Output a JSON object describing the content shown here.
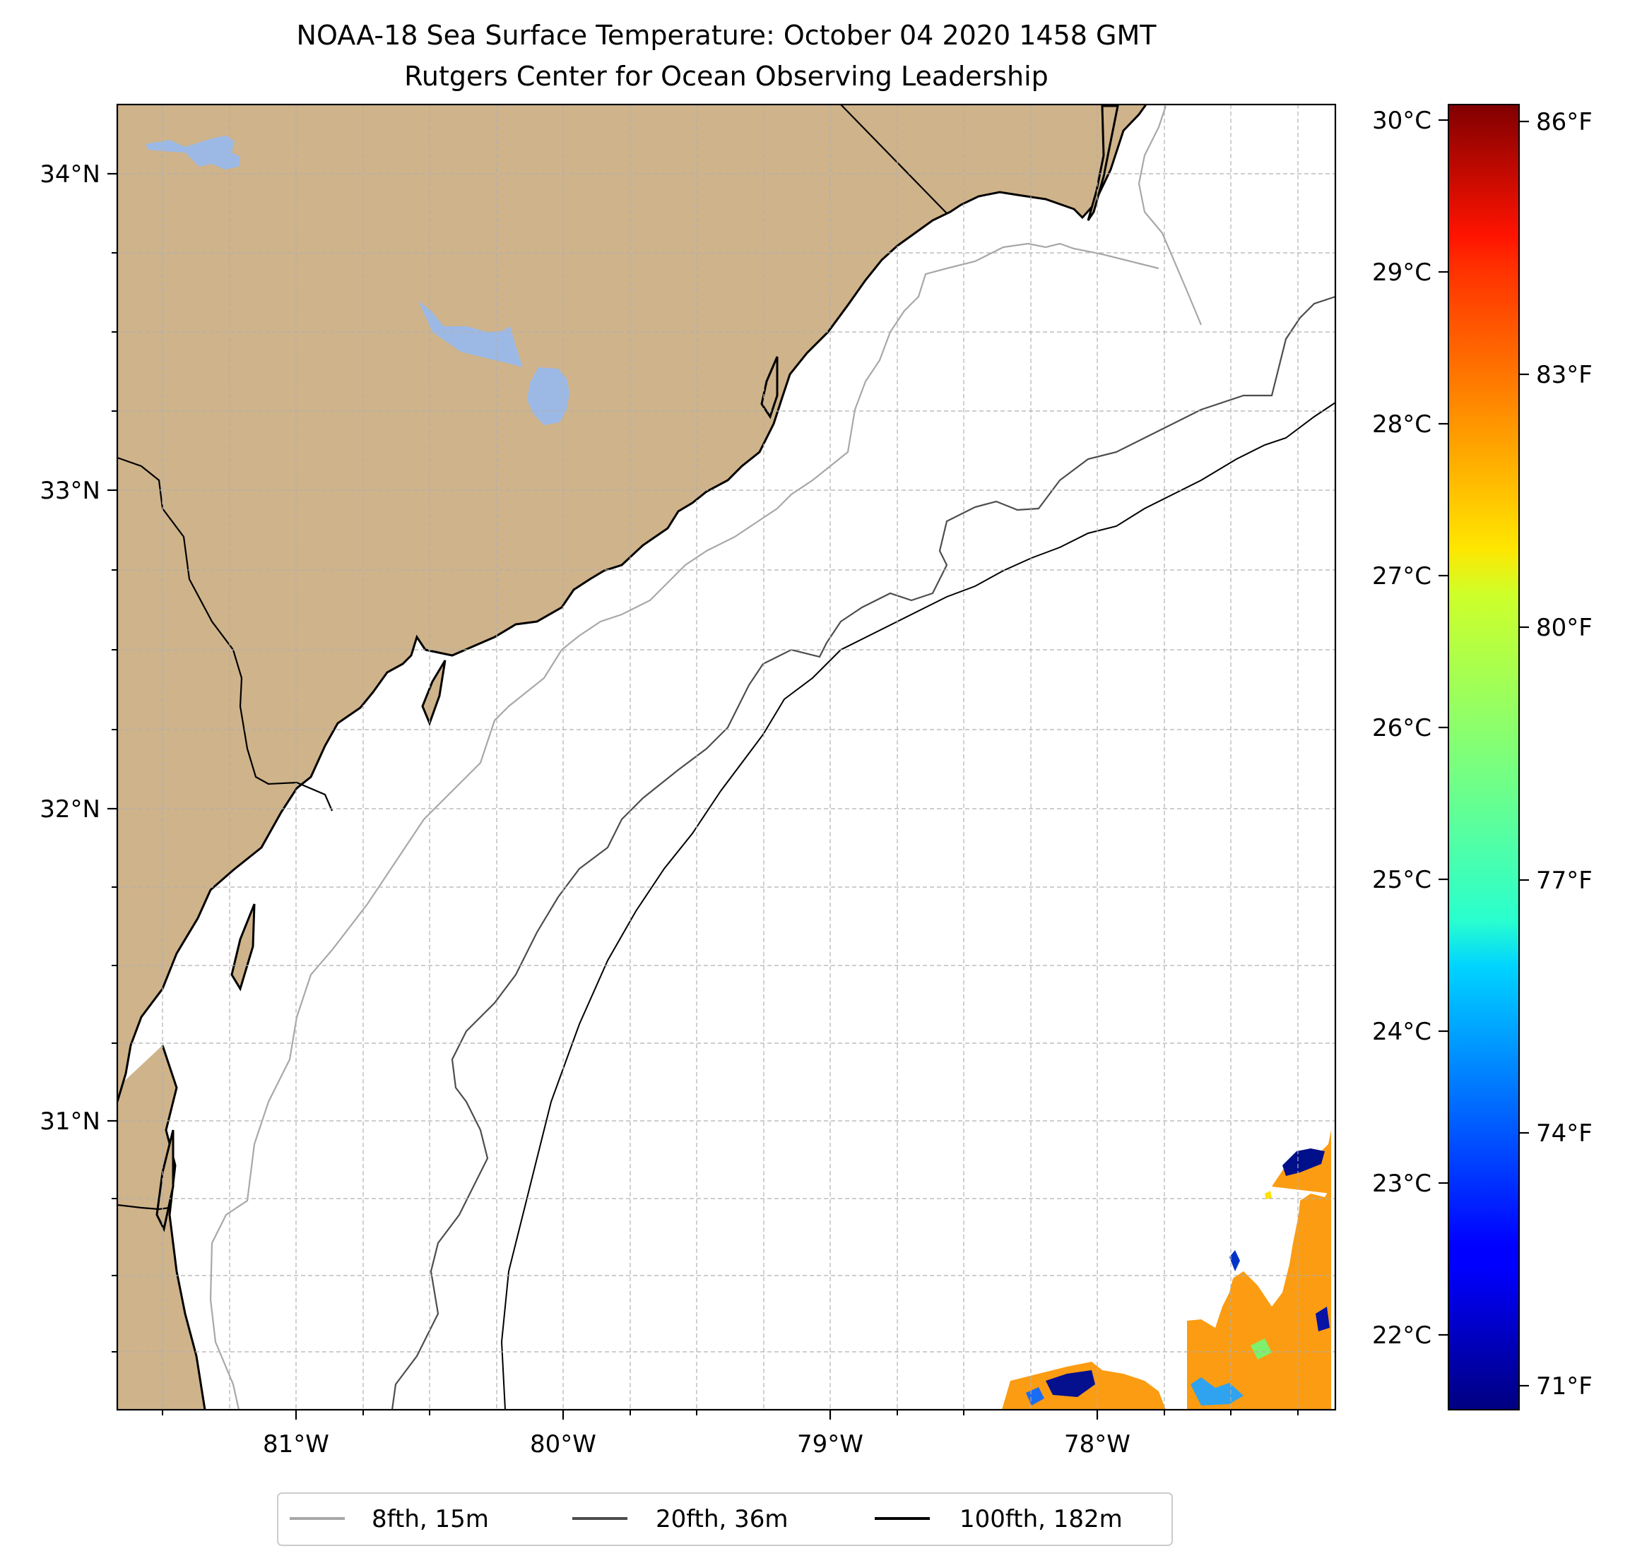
{
  "title": {
    "line1": "NOAA-18 Sea Surface Temperature: October 04 2020 1458 GMT",
    "line2": "Rutgers Center for Ocean Observing Leadership"
  },
  "map": {
    "lon_range": [
      -81.67,
      -77.1
    ],
    "lat_range": [
      30.07,
      34.22
    ],
    "land_color": "#cfb38a",
    "lake_color": "#9cb9e6",
    "ocean_color": "#ffffff",
    "grid": "dashed"
  },
  "axes": {
    "lon_ticks": [
      {
        "value": -81,
        "label": "81°W"
      },
      {
        "value": -80,
        "label": "80°W"
      },
      {
        "value": -79,
        "label": "79°W"
      },
      {
        "value": -78,
        "label": "78°W"
      }
    ],
    "lat_ticks": [
      {
        "value": 34,
        "label": "34°N"
      },
      {
        "value": 33,
        "label": "33°N"
      },
      {
        "value": 32,
        "label": "32°N"
      },
      {
        "value": 31,
        "label": "31°N"
      }
    ]
  },
  "colorbar": {
    "colormap": "jet",
    "range_c": [
      21.5,
      30.1
    ],
    "celsius_ticks": [
      {
        "value": 30,
        "label": "30°C"
      },
      {
        "value": 29,
        "label": "29°C"
      },
      {
        "value": 28,
        "label": "28°C"
      },
      {
        "value": 27,
        "label": "27°C"
      },
      {
        "value": 26,
        "label": "26°C"
      },
      {
        "value": 25,
        "label": "25°C"
      },
      {
        "value": 24,
        "label": "24°C"
      },
      {
        "value": 23,
        "label": "23°C"
      },
      {
        "value": 22,
        "label": "22°C"
      }
    ],
    "fahrenheit_ticks": [
      {
        "value": 86,
        "label": "86°F"
      },
      {
        "value": 83,
        "label": "83°F"
      },
      {
        "value": 80,
        "label": "80°F"
      },
      {
        "value": 77,
        "label": "77°F"
      },
      {
        "value": 74,
        "label": "74°F"
      },
      {
        "value": 71,
        "label": "71°F"
      }
    ]
  },
  "legend": {
    "placement": "bottom-center",
    "items": [
      {
        "label": "8fth, 15m",
        "color": "#a8a8a8"
      },
      {
        "label": "20fth, 36m",
        "color": "#4d4d4d"
      },
      {
        "label": "100fth, 182m",
        "color": "#000000"
      }
    ]
  }
}
